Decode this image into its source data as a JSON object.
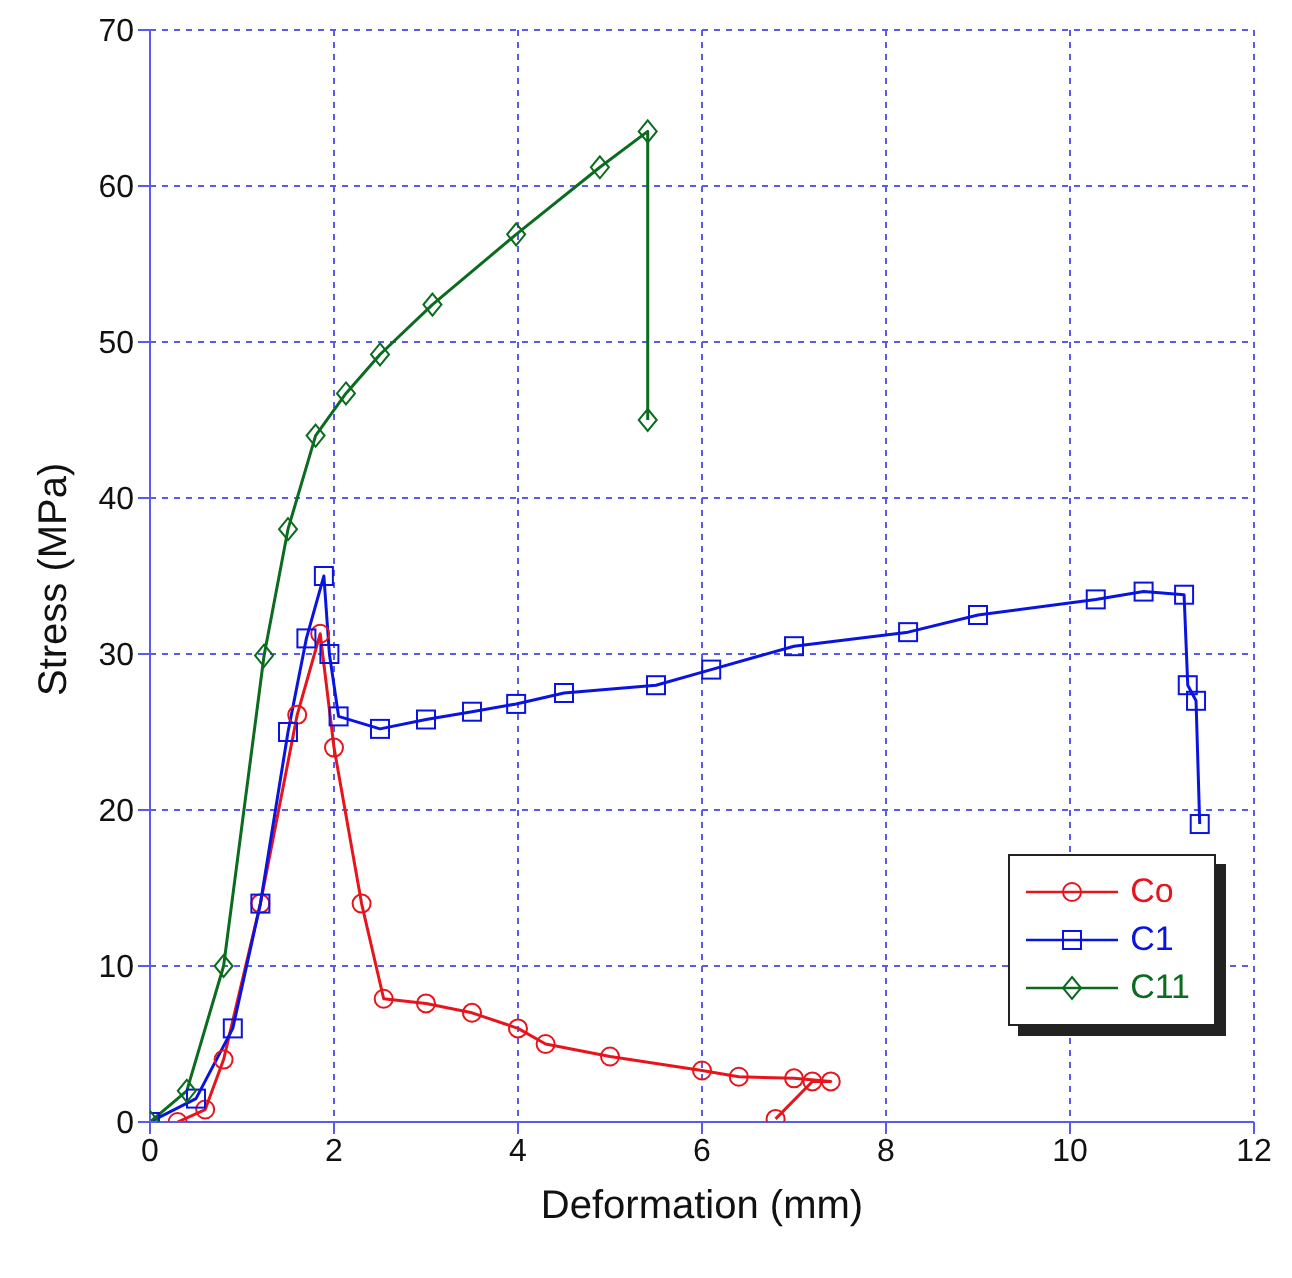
{
  "chart_data": {
    "type": "line",
    "xlabel": "Deformation (mm)",
    "ylabel": "Stress (MPa)",
    "xlim": [
      0,
      12
    ],
    "xticks": [
      0,
      2,
      4,
      6,
      8,
      10,
      12
    ],
    "ylim": [
      0,
      70
    ],
    "yticks": [
      0,
      10,
      20,
      30,
      40,
      50,
      60,
      70
    ],
    "grid": true,
    "legend": "bottom right",
    "line_style": "solid",
    "series": [
      {
        "name": "Co",
        "color": "#e8141b",
        "marker": "circle",
        "x": [
          0.3,
          0.6,
          0.8,
          1.2,
          1.6,
          1.85,
          2.0,
          2.3,
          2.54,
          3.0,
          3.5,
          4.0,
          4.3,
          5.0,
          6.0,
          6.4,
          7.0,
          7.4,
          7.2,
          6.8
        ],
        "values": [
          0,
          0.8,
          4.0,
          14,
          26.1,
          31.3,
          24,
          14,
          7.9,
          7.6,
          7.0,
          6.0,
          5.0,
          4.2,
          3.3,
          2.9,
          2.8,
          2.6,
          2.6,
          0.2
        ]
      },
      {
        "name": "C1",
        "color": "#0a14e0",
        "marker": "square",
        "x": [
          0,
          0.5,
          0.9,
          1.2,
          1.5,
          1.7,
          1.89,
          1.95,
          2.05,
          2.5,
          3.0,
          3.5,
          3.98,
          4.5,
          5.5,
          6.1,
          7.0,
          8.24,
          9.0,
          10.28,
          10.8,
          11.24,
          11.28,
          11.37,
          11.41
        ],
        "values": [
          0,
          1.5,
          6,
          14,
          25,
          31,
          35.0,
          30,
          26,
          25.2,
          25.8,
          26.3,
          26.8,
          27.5,
          28,
          29,
          30.5,
          31.4,
          32.5,
          33.5,
          34,
          33.8,
          28.0,
          27.0,
          19.1
        ]
      },
      {
        "name": "C11",
        "color": "#0b6b1e",
        "marker": "diamond",
        "x": [
          0,
          0.4,
          0.8,
          1.24,
          1.5,
          1.8,
          2.13,
          2.5,
          3.07,
          3.98,
          4.89,
          5.41,
          5.41
        ],
        "values": [
          0,
          2,
          10,
          29.9,
          38,
          44,
          46.7,
          49.2,
          52.4,
          56.9,
          61.2,
          63.5,
          45.0
        ]
      }
    ]
  }
}
